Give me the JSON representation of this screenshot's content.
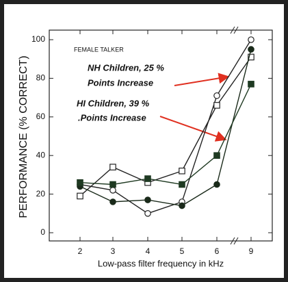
{
  "chart_data": {
    "type": "line",
    "ylabel": "PERFORMANCE (% CORRECT)",
    "xlabel": "Low-pass filter frequency in kHz",
    "categories": [
      "2",
      "3",
      "4",
      "5",
      "6",
      "9"
    ],
    "ylim": [
      0,
      100
    ],
    "yticks": [
      0,
      20,
      40,
      60,
      80,
      100
    ],
    "series": [
      {
        "marker": "circle",
        "filled": false,
        "color": "#222",
        "values": [
          25,
          22,
          10,
          16,
          71,
          100
        ]
      },
      {
        "marker": "square",
        "filled": false,
        "color": "#222",
        "values": [
          19,
          34,
          26,
          32,
          66,
          91
        ]
      },
      {
        "marker": "circle",
        "filled": true,
        "color": "#1a2a1a",
        "values": [
          24,
          16,
          17,
          14,
          25,
          95
        ]
      },
      {
        "marker": "square",
        "filled": true,
        "color": "#1f3a22",
        "values": [
          26,
          25,
          28,
          25,
          40,
          77
        ]
      }
    ],
    "annotations": [
      "FEMALE TALKER",
      "NH Children, 25 %",
      "Points Increase",
      "HI Children, 39 %",
      ".Points Increase"
    ],
    "arrow_color": "#e03020"
  }
}
